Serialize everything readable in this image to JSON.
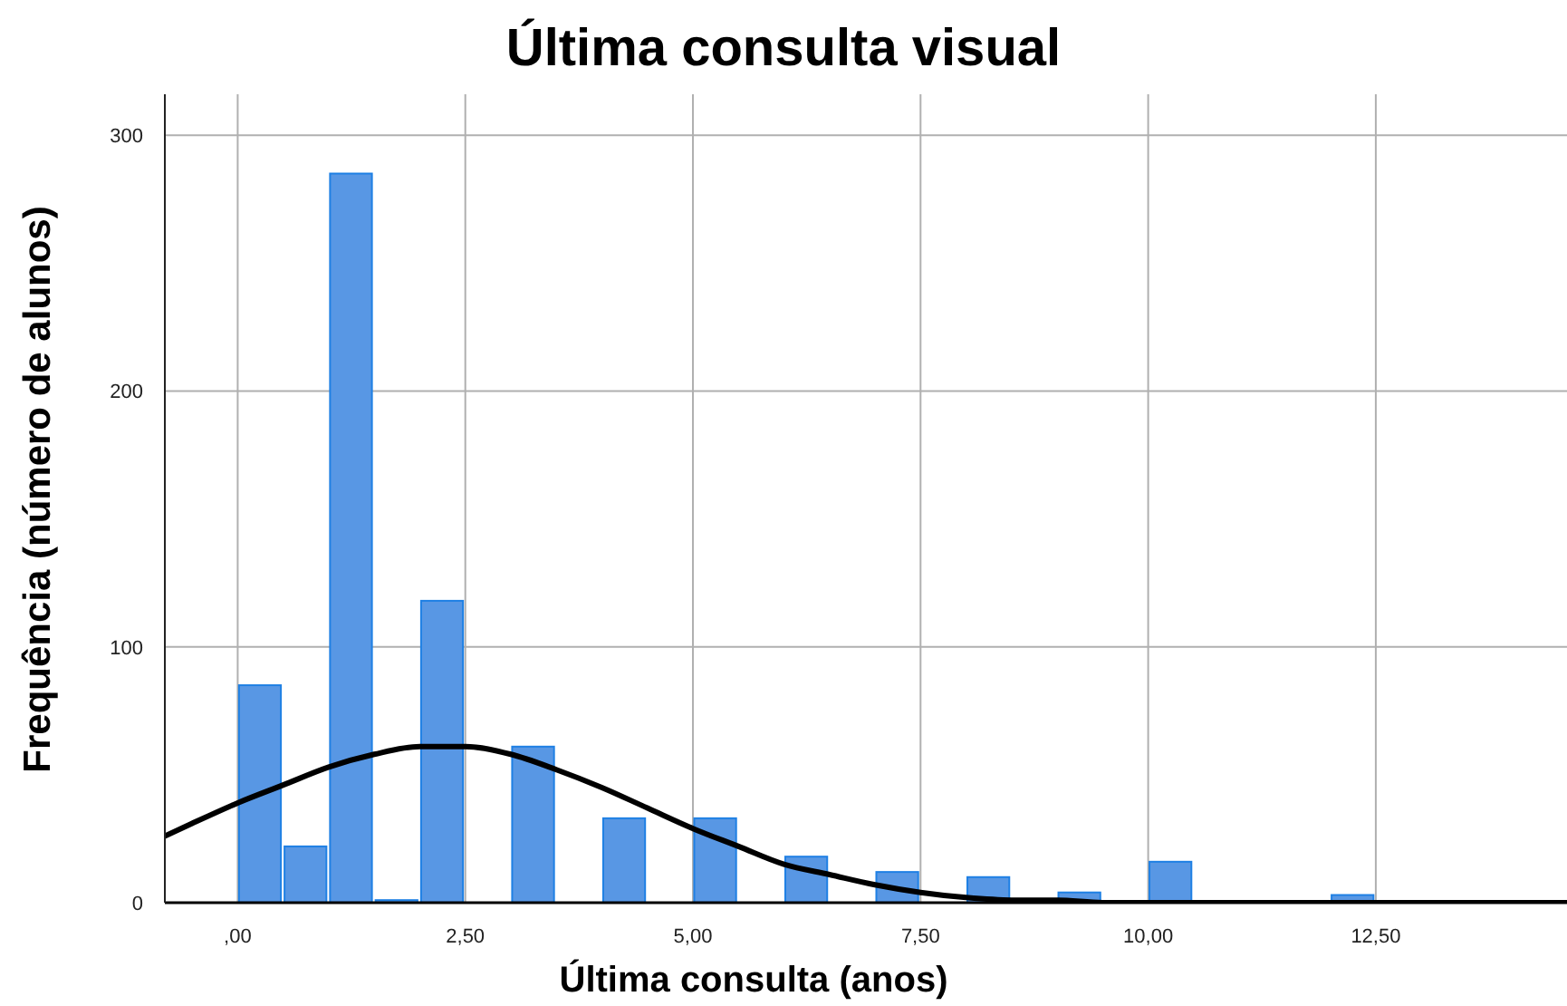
{
  "chart_data": {
    "type": "histogram",
    "title": "Última consulta visual",
    "xlabel": "Última consulta (anos)",
    "ylabel": "Frequência (número de alunos)",
    "series": [
      {
        "type": "histogram",
        "color": "#5897e4",
        "bins": [
          0,
          0.5,
          1,
          1.5,
          2,
          2.5,
          3,
          3.5,
          4,
          4.5,
          5,
          5.5,
          6,
          6.5,
          7,
          7.5,
          8,
          8.5,
          9,
          9.5,
          10,
          10.5,
          11,
          11.5,
          12,
          12.5
        ],
        "values": [
          85,
          22,
          285,
          1,
          118,
          0,
          61,
          0,
          33,
          0,
          33,
          0,
          18,
          0,
          12,
          0,
          10,
          0,
          4,
          0,
          16,
          0,
          0,
          0,
          3
        ]
      },
      {
        "type": "line",
        "color": "#000000",
        "x": [
          -0.8,
          -0.5,
          0,
          0.5,
          1,
          1.5,
          2,
          2.5,
          3,
          3.5,
          4,
          4.5,
          5,
          5.5,
          6,
          6.5,
          7,
          7.5,
          8,
          8.5,
          9,
          9.5,
          10,
          11,
          12,
          13,
          14,
          14.6
        ],
        "values": [
          26,
          31,
          39,
          46,
          53,
          58,
          61,
          61,
          58,
          52,
          45,
          37,
          29,
          22,
          15,
          11,
          7,
          4,
          2,
          1,
          1,
          0,
          0,
          0,
          0,
          0,
          0,
          0
        ]
      }
    ],
    "xlim": [
      -0.8,
      14.6
    ],
    "xticks": [
      {
        "value": 0,
        "label": ",00"
      },
      {
        "value": 2.5,
        "label": "2,50"
      },
      {
        "value": 5,
        "label": "5,00"
      },
      {
        "value": 7.5,
        "label": "7,50"
      },
      {
        "value": 10,
        "label": "10,00"
      },
      {
        "value": 12.5,
        "label": "12,50"
      }
    ],
    "ylim": [
      0,
      316
    ],
    "yticks": [
      0,
      100,
      200,
      300
    ],
    "grid": true
  }
}
